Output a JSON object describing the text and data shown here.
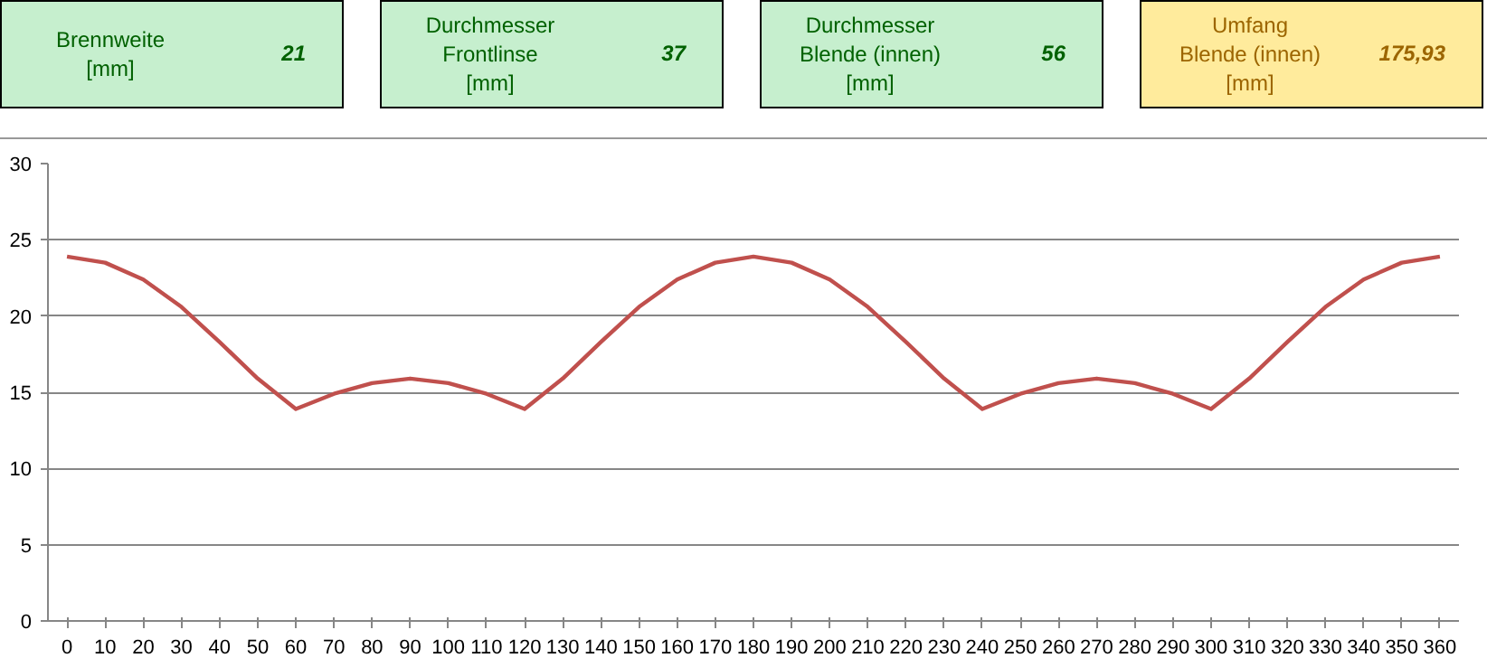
{
  "chart_data": {
    "type": "line",
    "annotations": [
      "Brennweite\n[mm]",
      "21",
      "Durchmesser\nFrontlinse\n[mm]",
      "37",
      "Durchmesser\nBlende (innen)\n[mm]",
      "56",
      "Umfang\nBlende (innen)\n[mm]",
      "175,93"
    ],
    "categories": [
      "0",
      "10",
      "20",
      "30",
      "40",
      "50",
      "60",
      "70",
      "80",
      "90",
      "100",
      "110",
      "120",
      "130",
      "140",
      "150",
      "160",
      "170",
      "180",
      "190",
      "200",
      "210",
      "220",
      "230",
      "240",
      "250",
      "260",
      "270",
      "280",
      "290",
      "300",
      "310",
      "320",
      "330",
      "340",
      "350",
      "360"
    ],
    "values": [
      23.9,
      23.5,
      22.4,
      20.6,
      18.3,
      15.9,
      13.9,
      14.9,
      15.6,
      15.9,
      15.6,
      14.9,
      13.9,
      15.9,
      18.3,
      20.6,
      22.4,
      23.5,
      23.9,
      23.5,
      22.4,
      20.6,
      18.3,
      15.9,
      13.9,
      14.9,
      15.6,
      15.9,
      15.6,
      14.9,
      13.9,
      15.9,
      18.3,
      20.6,
      22.4,
      23.5,
      23.9
    ],
    "color": "#c0504d",
    "ylim": [
      0,
      30
    ],
    "yticks": [
      0,
      5,
      10,
      15,
      20,
      25,
      30
    ],
    "grid": "y"
  }
}
